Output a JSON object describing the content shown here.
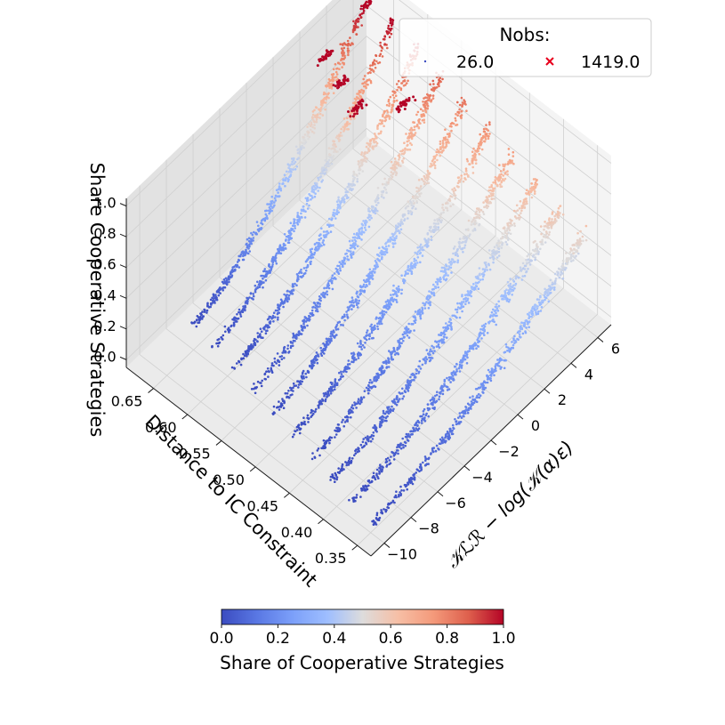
{
  "chart_data": {
    "type": "scatter3d",
    "title": "",
    "x_axis": {
      "label": "𝒦ℒℛ − log(𝒦(α)ε)",
      "range": [
        -11,
        7
      ],
      "ticks": [
        -10,
        -8,
        -6,
        -4,
        -2,
        0,
        2,
        4,
        6
      ],
      "tick_labels": [
        "−10",
        "−8",
        "−6",
        "−4",
        "−2",
        "0",
        "2",
        "4",
        "6"
      ]
    },
    "y_axis": {
      "label": "Distance to IC Constraint",
      "range": [
        0.33,
        0.69
      ],
      "ticks": [
        0.35,
        0.4,
        0.45,
        0.5,
        0.55,
        0.6,
        0.65
      ],
      "tick_labels": [
        "0.35",
        "0.40",
        "0.45",
        "0.50",
        "0.55",
        "0.60",
        "0.65"
      ]
    },
    "z_axis": {
      "label": "Share Cooperative Strategies",
      "range": [
        -0.05,
        1.05
      ],
      "ticks": [
        0.0,
        0.2,
        0.4,
        0.6,
        0.8,
        1.0
      ],
      "tick_labels": [
        "0.0",
        "0.2",
        "0.4",
        "0.6",
        "0.8",
        "1.0"
      ]
    },
    "bands": [
      {
        "distance": 0.35,
        "x_min": -10.0,
        "x_max": 6.0
      },
      {
        "distance": 0.385,
        "x_min": -9.7,
        "x_max": 6.0
      },
      {
        "distance": 0.42,
        "x_min": -9.4,
        "x_max": 6.0
      },
      {
        "distance": 0.455,
        "x_min": -9.1,
        "x_max": 6.0
      },
      {
        "distance": 0.49,
        "x_min": -8.8,
        "x_max": 6.0
      },
      {
        "distance": 0.525,
        "x_min": -8.5,
        "x_max": 6.0
      },
      {
        "distance": 0.56,
        "x_min": -8.2,
        "x_max": 6.0
      },
      {
        "distance": 0.595,
        "x_min": -7.9,
        "x_max": 6.0
      },
      {
        "distance": 0.63,
        "x_min": -7.6,
        "x_max": 6.0
      },
      {
        "distance": 0.665,
        "x_min": -7.3,
        "x_max": 6.0
      }
    ],
    "legend": {
      "title": "Nobs:",
      "placement": "top-right",
      "entries": [
        {
          "label": "26.0",
          "marker": "dot",
          "color": "#3b4cc0"
        },
        {
          "label": "1419.0",
          "marker": "x",
          "color": "#e8001c"
        }
      ]
    },
    "colorbar": {
      "label": "Share of Cooperative Strategies",
      "range": [
        0.0,
        1.0
      ],
      "ticks": [
        0.0,
        0.2,
        0.4,
        0.6,
        0.8,
        1.0
      ],
      "tick_labels": [
        "0.0",
        "0.2",
        "0.4",
        "0.6",
        "0.8",
        "1.0"
      ],
      "colormap": "coolwarm"
    }
  },
  "colors": {
    "pane_light": "#f4f4f4",
    "pane_mid": "#ebebeb",
    "pane_dark": "#e2e2e2",
    "grid": "#d0d0d0",
    "edge": "#1a1a1a",
    "cool": "#3b4cc0",
    "neutral": "#dddddd",
    "warm": "#b40426"
  }
}
